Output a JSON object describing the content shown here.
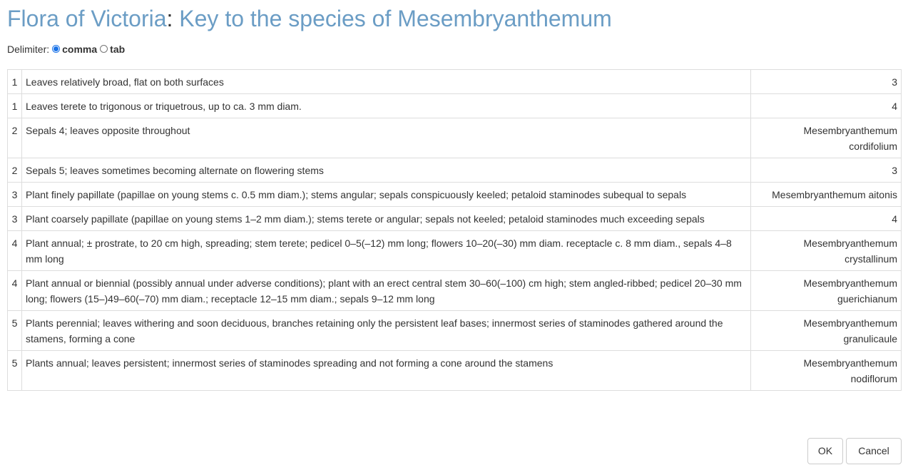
{
  "header": {
    "title_prefix": "Flora of Victoria",
    "title_separator": ":",
    "title_main": "Key to the species of Mesembryanthemum"
  },
  "delimiter": {
    "label": "Delimiter:",
    "options": [
      {
        "label": "comma",
        "checked": true
      },
      {
        "label": "tab",
        "checked": false
      }
    ]
  },
  "key_rows": [
    {
      "num": "1",
      "text": "Leaves relatively broad, flat on both surfaces",
      "result": "3"
    },
    {
      "num": "1",
      "text": "Leaves terete to trigonous or triquetrous, up to ca. 3 mm diam.",
      "result": "4"
    },
    {
      "num": "2",
      "text": "Sepals 4; leaves opposite throughout",
      "result": "Mesembryanthemum cordifolium"
    },
    {
      "num": "2",
      "text": "Sepals 5; leaves sometimes becoming alternate on flowering stems",
      "result": "3"
    },
    {
      "num": "3",
      "text": "Plant finely papillate (papillae on young stems c. 0.5 mm diam.); stems angular; sepals conspicuously keeled; petaloid staminodes subequal to sepals",
      "result": "Mesembryanthemum aitonis"
    },
    {
      "num": "3",
      "text": "Plant coarsely papillate (papillae on young stems 1–2 mm diam.); stems terete or angular; sepals not keeled; petaloid staminodes much exceeding sepals",
      "result": "4"
    },
    {
      "num": "4",
      "text": "Plant annual; ± prostrate, to 20 cm high, spreading; stem terete; pedicel 0–5(–12) mm long; flowers 10–20(–30) mm diam. receptacle c. 8 mm diam., sepals 4–8 mm long",
      "result": "Mesembryanthemum crystallinum"
    },
    {
      "num": "4",
      "text": "Plant annual or biennial (possibly annual under adverse conditions); plant with an erect central stem 30–60(–100) cm high; stem angled-ribbed; pedicel 20–30 mm long; flowers (15–)49–60(–70) mm diam.; receptacle 12–15 mm diam.; sepals 9–12 mm long",
      "result": "Mesembryanthemum guerichianum"
    },
    {
      "num": "5",
      "text": "Plants perennial; leaves withering and soon deciduous, branches retaining only the persistent leaf bases; innermost series of staminodes gathered around the stamens, forming a cone",
      "result": "Mesembryanthemum granulicaule"
    },
    {
      "num": "5",
      "text": "Plants annual; leaves persistent; innermost series of staminodes spreading and not forming a cone around the stamens",
      "result": "Mesembryanthemum nodiflorum"
    }
  ],
  "buttons": {
    "ok_label": "OK",
    "cancel_label": "Cancel"
  },
  "colors": {
    "title_accent": "#6b9dc5",
    "text": "#333333",
    "table_border": "#dddddd",
    "radio_checked": "#1a73e8"
  }
}
